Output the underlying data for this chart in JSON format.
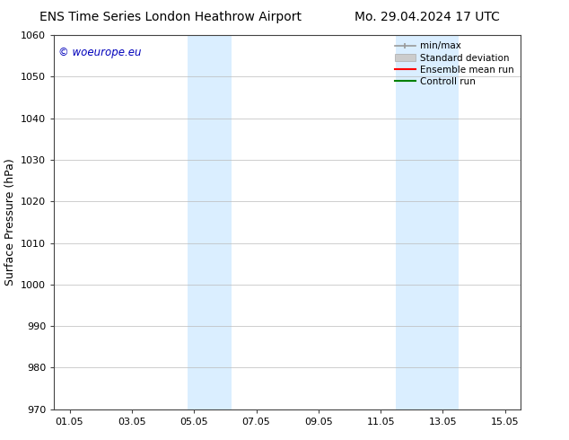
{
  "title_left": "ENS Time Series London Heathrow Airport",
  "title_right": "Mo. 29.04.2024 17 UTC",
  "ylabel": "Surface Pressure (hPa)",
  "ylim": [
    970,
    1060
  ],
  "yticks": [
    970,
    980,
    990,
    1000,
    1010,
    1020,
    1030,
    1040,
    1050,
    1060
  ],
  "xtick_labels": [
    "01.05",
    "03.05",
    "05.05",
    "07.05",
    "09.05",
    "11.05",
    "13.05",
    "15.05"
  ],
  "xtick_positions": [
    0,
    2,
    4,
    6,
    8,
    10,
    12,
    14
  ],
  "shade_bands": [
    {
      "x_start": 3.8,
      "x_end": 5.2
    },
    {
      "x_start": 10.5,
      "x_end": 12.5
    }
  ],
  "shade_color": "#daeeff",
  "bg_color": "#ffffff",
  "copyright_text": "© woeurope.eu",
  "copyright_color": "#0000bb",
  "grid_color": "#bbbbbb",
  "title_fontsize": 10,
  "ylabel_fontsize": 9,
  "tick_fontsize": 8,
  "copyright_fontsize": 8.5,
  "legend_fontsize": 7.5,
  "x_min": -0.5,
  "x_max": 14.5,
  "figure_width": 6.34,
  "figure_height": 4.9
}
